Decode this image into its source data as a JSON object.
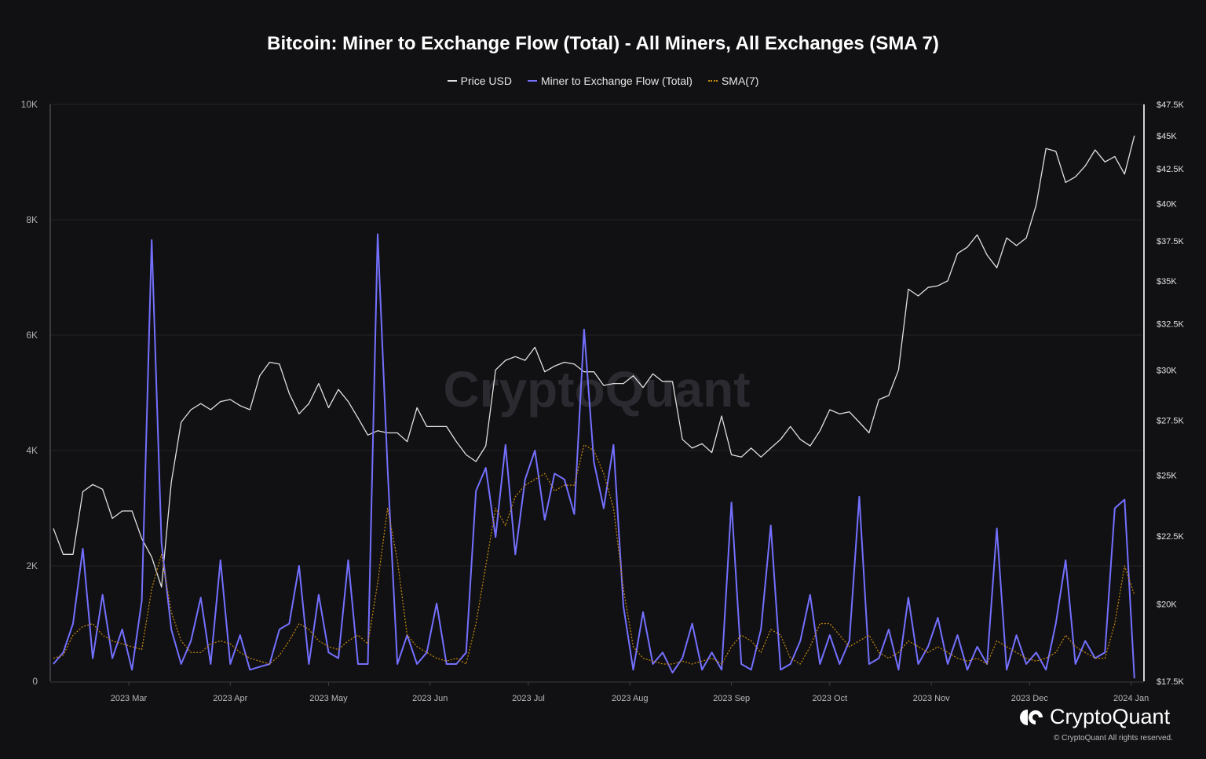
{
  "title": "Bitcoin: Miner to Exchange Flow (Total) - All Miners, All Exchanges (SMA 7)",
  "legend": [
    {
      "label": "Price USD",
      "color": "#e0e0e0",
      "style": "solid"
    },
    {
      "label": "Miner to Exchange Flow (Total)",
      "color": "#7470ff",
      "style": "solid"
    },
    {
      "label": "SMA(7)",
      "color": "#c98a0c",
      "style": "dotted"
    }
  ],
  "watermark": "CryptoQuant",
  "brand": {
    "name": "CryptoQuant",
    "copyright": "© CryptoQuant All rights reserved."
  },
  "chart_data": {
    "type": "line",
    "title": "Bitcoin: Miner to Exchange Flow (Total) - All Miners, All Exchanges (SMA 7)",
    "x_range": [
      "2023-02-06",
      "2024-01-03"
    ],
    "x_ticks": [
      {
        "date": "2023-03-01",
        "label": "2023 Mar"
      },
      {
        "date": "2023-04-01",
        "label": "2023 Apr"
      },
      {
        "date": "2023-05-01",
        "label": "2023 May"
      },
      {
        "date": "2023-06-01",
        "label": "2023 Jun"
      },
      {
        "date": "2023-07-01",
        "label": "2023 Jul"
      },
      {
        "date": "2023-08-01",
        "label": "2023 Aug"
      },
      {
        "date": "2023-09-01",
        "label": "2023 Sep"
      },
      {
        "date": "2023-10-01",
        "label": "2023 Oct"
      },
      {
        "date": "2023-11-01",
        "label": "2023 Nov"
      },
      {
        "date": "2023-12-01",
        "label": "2023 Dec"
      },
      {
        "date": "2024-01-01",
        "label": "2024 Jan"
      }
    ],
    "y_left": {
      "range": [
        0,
        10000
      ],
      "scale": "linear",
      "ticks": [
        0,
        2000,
        4000,
        6000,
        8000,
        10000
      ],
      "tick_labels": [
        "0",
        "2K",
        "4K",
        "6K",
        "8K",
        "10K"
      ],
      "grid": true
    },
    "y_right": {
      "range": [
        17500,
        47500
      ],
      "scale": "log",
      "ticks": [
        17500,
        20000,
        22500,
        25000,
        27500,
        30000,
        32500,
        35000,
        37500,
        40000,
        42500,
        45000,
        47500
      ],
      "tick_labels": [
        "$17.5K",
        "$20K",
        "$22.5K",
        "$25K",
        "$27.5K",
        "$30K",
        "$32.5K",
        "$35K",
        "$37.5K",
        "$40K",
        "$42.5K",
        "$45K",
        "$47.5K"
      ]
    },
    "legend_position": "top",
    "x": [
      "2023-02-06",
      "2023-02-09",
      "2023-02-12",
      "2023-02-15",
      "2023-02-18",
      "2023-02-21",
      "2023-02-24",
      "2023-02-27",
      "2023-03-02",
      "2023-03-05",
      "2023-03-08",
      "2023-03-11",
      "2023-03-14",
      "2023-03-17",
      "2023-03-20",
      "2023-03-23",
      "2023-03-26",
      "2023-03-29",
      "2023-04-01",
      "2023-04-04",
      "2023-04-07",
      "2023-04-10",
      "2023-04-13",
      "2023-04-16",
      "2023-04-19",
      "2023-04-22",
      "2023-04-25",
      "2023-04-28",
      "2023-05-01",
      "2023-05-04",
      "2023-05-07",
      "2023-05-10",
      "2023-05-13",
      "2023-05-16",
      "2023-05-19",
      "2023-05-22",
      "2023-05-25",
      "2023-05-28",
      "2023-05-31",
      "2023-06-03",
      "2023-06-06",
      "2023-06-09",
      "2023-06-12",
      "2023-06-15",
      "2023-06-18",
      "2023-06-21",
      "2023-06-24",
      "2023-06-27",
      "2023-06-30",
      "2023-07-03",
      "2023-07-06",
      "2023-07-09",
      "2023-07-12",
      "2023-07-15",
      "2023-07-18",
      "2023-07-21",
      "2023-07-24",
      "2023-07-27",
      "2023-07-30",
      "2023-08-02",
      "2023-08-05",
      "2023-08-08",
      "2023-08-11",
      "2023-08-14",
      "2023-08-17",
      "2023-08-20",
      "2023-08-23",
      "2023-08-26",
      "2023-08-29",
      "2023-09-01",
      "2023-09-04",
      "2023-09-07",
      "2023-09-10",
      "2023-09-13",
      "2023-09-16",
      "2023-09-19",
      "2023-09-22",
      "2023-09-25",
      "2023-09-28",
      "2023-10-01",
      "2023-10-04",
      "2023-10-07",
      "2023-10-10",
      "2023-10-13",
      "2023-10-16",
      "2023-10-19",
      "2023-10-22",
      "2023-10-25",
      "2023-10-28",
      "2023-10-31",
      "2023-11-03",
      "2023-11-06",
      "2023-11-09",
      "2023-11-12",
      "2023-11-15",
      "2023-11-18",
      "2023-11-21",
      "2023-11-24",
      "2023-11-27",
      "2023-11-30",
      "2023-12-03",
      "2023-12-06",
      "2023-12-09",
      "2023-12-12",
      "2023-12-15",
      "2023-12-18",
      "2023-12-21",
      "2023-12-24",
      "2023-12-27",
      "2023-12-30",
      "2024-01-02"
    ],
    "series": [
      {
        "name": "Price USD",
        "axis": "right",
        "color": "#e0e0e0",
        "values": [
          22800,
          21800,
          21800,
          24300,
          24600,
          24400,
          23200,
          23500,
          23500,
          22400,
          21700,
          20600,
          24700,
          27400,
          28000,
          28300,
          28000,
          28400,
          28500,
          28200,
          28000,
          29700,
          30400,
          30300,
          28800,
          27800,
          28300,
          29300,
          28100,
          29000,
          28400,
          27600,
          26800,
          27000,
          26900,
          26900,
          26500,
          28100,
          27200,
          27200,
          27200,
          26500,
          25900,
          25600,
          26300,
          30000,
          30500,
          30700,
          30500,
          31200,
          29900,
          30200,
          30400,
          30300,
          29900,
          29900,
          29200,
          29300,
          29300,
          29700,
          29100,
          29800,
          29400,
          29400,
          26600,
          26200,
          26400,
          26000,
          27700,
          25900,
          25800,
          26200,
          25800,
          26200,
          26600,
          27200,
          26600,
          26300,
          27000,
          28000,
          27800,
          27900,
          27400,
          26900,
          28500,
          28700,
          30000,
          34500,
          34100,
          34600,
          34700,
          35000,
          36700,
          37100,
          37900,
          36600,
          35800,
          37700,
          37200,
          37700,
          39900,
          44000,
          43800,
          41500,
          41900,
          42700,
          43900,
          43000,
          43400,
          42100,
          45000
        ]
      },
      {
        "name": "Miner to Exchange Flow (Total)",
        "axis": "left",
        "color": "#7470ff",
        "values": [
          300,
          500,
          1000,
          2300,
          400,
          1500,
          400,
          900,
          200,
          1400,
          7650,
          2400,
          900,
          300,
          700,
          1450,
          300,
          2100,
          300,
          800,
          200,
          250,
          300,
          900,
          1000,
          2000,
          300,
          1500,
          500,
          400,
          2100,
          300,
          300,
          7750,
          3700,
          300,
          800,
          300,
          500,
          1350,
          300,
          300,
          500,
          3300,
          3700,
          2500,
          4100,
          2200,
          3500,
          4000,
          2800,
          3600,
          3500,
          2900,
          6100,
          3800,
          3000,
          4100,
          1300,
          200,
          1200,
          300,
          500,
          150,
          400,
          1000,
          200,
          500,
          200,
          3100,
          300,
          200,
          900,
          2700,
          200,
          300,
          700,
          1500,
          300,
          800,
          300,
          700,
          3200,
          300,
          400,
          900,
          200,
          1450,
          300,
          600,
          1100,
          300,
          800,
          200,
          600,
          300,
          2650,
          200,
          800,
          300,
          500,
          200,
          1000,
          2100,
          300,
          700,
          400,
          500,
          3000,
          3150,
          50
        ]
      },
      {
        "name": "SMA(7)",
        "axis": "left",
        "color": "#c98a0c",
        "style": "dotted",
        "values": [
          400,
          450,
          800,
          950,
          1000,
          800,
          700,
          650,
          600,
          550,
          1600,
          2200,
          1200,
          700,
          500,
          500,
          650,
          700,
          650,
          500,
          400,
          350,
          300,
          450,
          700,
          1000,
          900,
          700,
          600,
          550,
          700,
          800,
          650,
          1700,
          3000,
          2100,
          800,
          600,
          500,
          400,
          350,
          400,
          300,
          1000,
          2000,
          3000,
          2700,
          3200,
          3400,
          3500,
          3600,
          3300,
          3400,
          3400,
          4100,
          4000,
          3600,
          3000,
          1600,
          600,
          400,
          350,
          300,
          300,
          350,
          300,
          350,
          400,
          300,
          600,
          800,
          700,
          500,
          900,
          800,
          400,
          300,
          600,
          1000,
          1000,
          800,
          600,
          700,
          800,
          500,
          400,
          500,
          700,
          600,
          500,
          600,
          500,
          400,
          350,
          400,
          300,
          700,
          600,
          500,
          400,
          350,
          400,
          500,
          800,
          600,
          500,
          400,
          400,
          1000,
          2000,
          1500
        ]
      }
    ]
  }
}
